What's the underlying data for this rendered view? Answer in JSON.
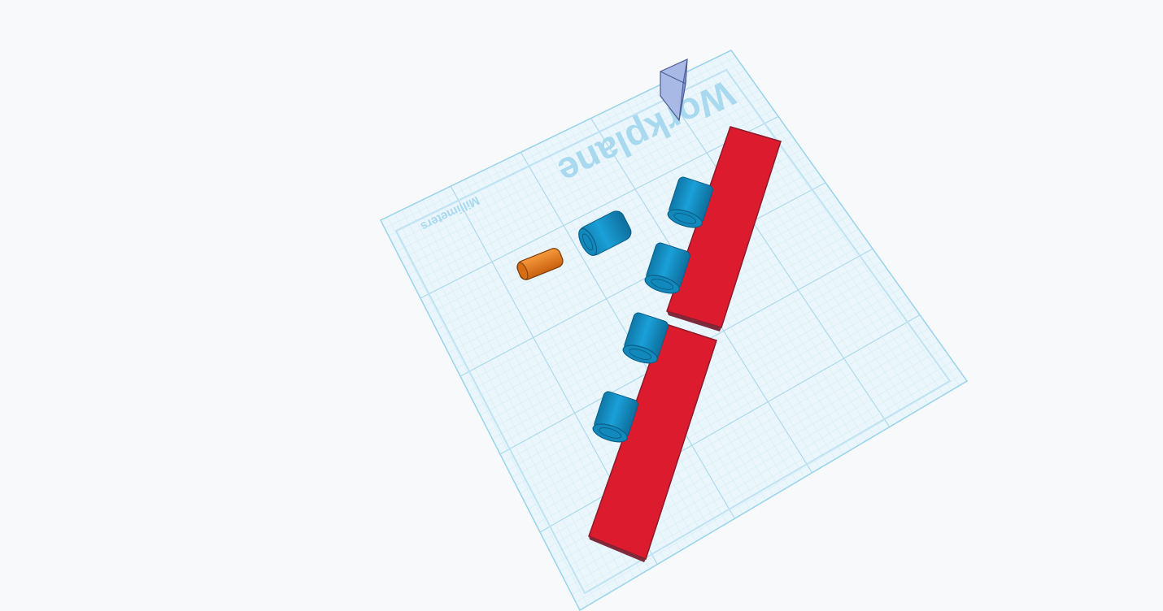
{
  "workplane": {
    "title": "Workplane",
    "units": "Millimeters"
  },
  "colors": {
    "background": "#f8f9fa",
    "plane_fill": "#e9f5fb",
    "plane_border": "#8fd0ea",
    "grid_fine": "#c9e7f3",
    "grid_major": "#a9d8ec",
    "label": "#9fd3ea",
    "red_shape": "#dc1c2e",
    "blue_shape": "#1592c8",
    "orange_shape": "#e8791a",
    "view_cube": "#9db0e0"
  },
  "objects": [
    {
      "name": "red-box",
      "kind": "box",
      "color": "red"
    },
    {
      "name": "red-box",
      "kind": "box",
      "color": "red"
    },
    {
      "name": "blue-cylinder",
      "kind": "cylinder",
      "color": "blue"
    },
    {
      "name": "blue-cylinder",
      "kind": "cylinder",
      "color": "blue"
    },
    {
      "name": "blue-cylinder",
      "kind": "cylinder",
      "color": "blue"
    },
    {
      "name": "blue-cylinder",
      "kind": "cylinder",
      "color": "blue"
    },
    {
      "name": "blue-cylinder",
      "kind": "cylinder",
      "color": "blue"
    },
    {
      "name": "orange-cylinder",
      "kind": "cylinder",
      "color": "orange"
    }
  ]
}
